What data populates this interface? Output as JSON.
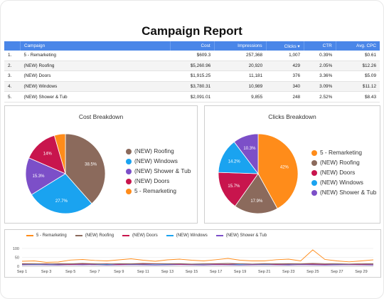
{
  "report": {
    "title": "Campaign Report"
  },
  "table": {
    "headers": [
      "Campaign",
      "Cost",
      "Impressions",
      "Clicks ▾",
      "CTR",
      "Avg. CPC"
    ],
    "rows": [
      [
        "1.",
        "5 - Remarketing",
        "$609.3",
        "257,368",
        "1,007",
        "0.39%",
        "$0.61"
      ],
      [
        "2.",
        "(NEW) Roofing",
        "$5,260.96",
        "20,920",
        "429",
        "2.05%",
        "$12.26"
      ],
      [
        "3.",
        "(NEW) Doors",
        "$1,915.25",
        "11,181",
        "376",
        "3.36%",
        "$5.09"
      ],
      [
        "4.",
        "(NEW) Windows",
        "$3,780.31",
        "10,989",
        "340",
        "3.09%",
        "$11.12"
      ],
      [
        "5.",
        "(NEW) Shower & Tub",
        "$2,091.01",
        "9,855",
        "248",
        "2.52%",
        "$8.43"
      ]
    ]
  },
  "colors": {
    "remarketing": "#ff8c1a",
    "roofing": "#8b6a5c",
    "doors": "#c8154d",
    "windows": "#1aa3f0",
    "shower": "#7c4fc8"
  },
  "chart_data": [
    {
      "type": "pie",
      "title": "Cost Breakdown",
      "labels": [
        "(NEW) Roofing",
        "(NEW) Windows",
        "(NEW) Shower & Tub",
        "(NEW) Doors",
        "5 - Remarketing"
      ],
      "values": [
        38.5,
        27.7,
        15.3,
        14,
        4.5
      ],
      "data_labels": [
        "38.5%",
        "27.7%",
        "15.3%",
        "14%",
        ""
      ],
      "colors": [
        "#8b6a5c",
        "#1aa3f0",
        "#7c4fc8",
        "#c8154d",
        "#ff8c1a"
      ]
    },
    {
      "type": "pie",
      "title": "Clicks Breakdown",
      "labels": [
        "5 - Remarketing",
        "(NEW) Roofing",
        "(NEW) Doors",
        "(NEW) Windows",
        "(NEW) Shower & Tub"
      ],
      "values": [
        42,
        17.9,
        15.7,
        14.2,
        10.3
      ],
      "data_labels": [
        "42%",
        "17.9%",
        "15.7%",
        "14.2%",
        "10.3%"
      ],
      "colors": [
        "#ff8c1a",
        "#8b6a5c",
        "#c8154d",
        "#1aa3f0",
        "#7c4fc8"
      ]
    },
    {
      "type": "line",
      "x": [
        "Sep 1",
        "Sep 2",
        "Sep 3",
        "Sep 4",
        "Sep 5",
        "Sep 6",
        "Sep 7",
        "Sep 8",
        "Sep 9",
        "Sep 10",
        "Sep 11",
        "Sep 12",
        "Sep 13",
        "Sep 14",
        "Sep 15",
        "Sep 16",
        "Sep 17",
        "Sep 18",
        "Sep 19",
        "Sep 20",
        "Sep 21",
        "Sep 22",
        "Sep 23",
        "Sep 24",
        "Sep 25",
        "Sep 26",
        "Sep 27",
        "Sep 28",
        "Sep 29",
        "Sep 30"
      ],
      "x_tick_labels": [
        "Sep 1",
        "Sep 3",
        "Sep 5",
        "Sep 7",
        "Sep 9",
        "Sep 11",
        "Sep 13",
        "Sep 15",
        "Sep 17",
        "Sep 19",
        "Sep 21",
        "Sep 23",
        "Sep 25",
        "Sep 27",
        "Sep 29"
      ],
      "y_tick_labels": [
        "100",
        "50",
        "0"
      ],
      "ylim": [
        0,
        100
      ],
      "series": [
        {
          "name": "5 - Remarketing",
          "color": "#ff8c1a",
          "values": [
            28,
            30,
            22,
            24,
            35,
            38,
            33,
            30,
            36,
            42,
            34,
            28,
            36,
            40,
            34,
            30,
            37,
            44,
            34,
            30,
            30,
            37,
            40,
            30,
            92,
            38,
            30,
            25,
            30,
            36
          ]
        },
        {
          "name": "(NEW) Roofing",
          "color": "#8b6a5c",
          "values": [
            15,
            14,
            13,
            15,
            14,
            16,
            14,
            13,
            15,
            14,
            16,
            15,
            14,
            15,
            13,
            14,
            15,
            16,
            14,
            13,
            15,
            14,
            15,
            14,
            16,
            15,
            14,
            13,
            15,
            14
          ]
        },
        {
          "name": "(NEW) Doors",
          "color": "#c8154d",
          "values": [
            12,
            13,
            14,
            12,
            11,
            13,
            12,
            14,
            11,
            13,
            12,
            14,
            13,
            12,
            11,
            13,
            12,
            11,
            14,
            12,
            13,
            11,
            12,
            13,
            12,
            11,
            13,
            12,
            11,
            12
          ]
        },
        {
          "name": "(NEW) Windows",
          "color": "#1aa3f0",
          "values": [
            10,
            11,
            12,
            10,
            11,
            12,
            11,
            10,
            12,
            11,
            10,
            12,
            11,
            12,
            10,
            11,
            12,
            10,
            11,
            12,
            10,
            11,
            10,
            12,
            11,
            10,
            11,
            12,
            10,
            11
          ]
        },
        {
          "name": "(NEW) Shower & Tub",
          "color": "#7c4fc8",
          "values": [
            8,
            9,
            8,
            7,
            9,
            8,
            9,
            7,
            8,
            9,
            8,
            7,
            8,
            9,
            8,
            7,
            9,
            8,
            7,
            8,
            9,
            8,
            7,
            9,
            8,
            7,
            8,
            9,
            8,
            7
          ]
        }
      ]
    }
  ]
}
